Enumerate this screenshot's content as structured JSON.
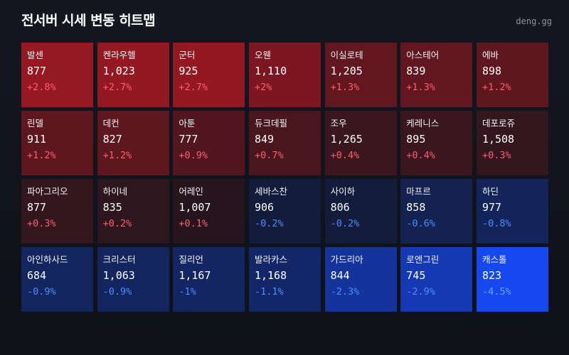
{
  "header": {
    "title": "전서버 시세 변동 히트맵",
    "brand": "deng.gg"
  },
  "colors": {
    "up_text": "#ff5c6c",
    "down_text": "#4a8dff",
    "strong_down_text": "#6ea2ff"
  },
  "cells": [
    {
      "name": "발센",
      "price": "877",
      "change": "+2.8%",
      "pct": 2.8
    },
    {
      "name": "켄라우헬",
      "price": "1,023",
      "change": "+2.7%",
      "pct": 2.7
    },
    {
      "name": "군터",
      "price": "925",
      "change": "+2.7%",
      "pct": 2.7
    },
    {
      "name": "오웬",
      "price": "1,110",
      "change": "+2%",
      "pct": 2.0
    },
    {
      "name": "이실로테",
      "price": "1,205",
      "change": "+1.3%",
      "pct": 1.3
    },
    {
      "name": "아스테어",
      "price": "839",
      "change": "+1.3%",
      "pct": 1.3
    },
    {
      "name": "에바",
      "price": "898",
      "change": "+1.2%",
      "pct": 1.2
    },
    {
      "name": "린델",
      "price": "911",
      "change": "+1.2%",
      "pct": 1.2
    },
    {
      "name": "데컨",
      "price": "827",
      "change": "+1.2%",
      "pct": 1.2
    },
    {
      "name": "아툰",
      "price": "777",
      "change": "+0.9%",
      "pct": 0.9
    },
    {
      "name": "듀크데필",
      "price": "849",
      "change": "+0.7%",
      "pct": 0.7
    },
    {
      "name": "조우",
      "price": "1,265",
      "change": "+0.4%",
      "pct": 0.4
    },
    {
      "name": "케레니스",
      "price": "895",
      "change": "+0.4%",
      "pct": 0.4
    },
    {
      "name": "데포로쥬",
      "price": "1,508",
      "change": "+0.3%",
      "pct": 0.3
    },
    {
      "name": "파아그리오",
      "price": "877",
      "change": "+0.3%",
      "pct": 0.3
    },
    {
      "name": "하이네",
      "price": "835",
      "change": "+0.2%",
      "pct": 0.2
    },
    {
      "name": "어레인",
      "price": "1,007",
      "change": "+0.1%",
      "pct": 0.1
    },
    {
      "name": "세바스찬",
      "price": "906",
      "change": "-0.2%",
      "pct": -0.2
    },
    {
      "name": "사이하",
      "price": "806",
      "change": "-0.2%",
      "pct": -0.2
    },
    {
      "name": "마프르",
      "price": "858",
      "change": "-0.6%",
      "pct": -0.6
    },
    {
      "name": "하딘",
      "price": "977",
      "change": "-0.8%",
      "pct": -0.8
    },
    {
      "name": "아인하사드",
      "price": "684",
      "change": "-0.9%",
      "pct": -0.9
    },
    {
      "name": "크리스터",
      "price": "1,063",
      "change": "-0.9%",
      "pct": -0.9
    },
    {
      "name": "질리언",
      "price": "1,167",
      "change": "-1%",
      "pct": -1.0
    },
    {
      "name": "발라카스",
      "price": "1,168",
      "change": "-1.1%",
      "pct": -1.1
    },
    {
      "name": "가드리아",
      "price": "844",
      "change": "-2.3%",
      "pct": -2.3
    },
    {
      "name": "로엔그린",
      "price": "745",
      "change": "-2.9%",
      "pct": -2.9
    },
    {
      "name": "캐스톨",
      "price": "823",
      "change": "-4.5%",
      "pct": -4.5
    }
  ]
}
